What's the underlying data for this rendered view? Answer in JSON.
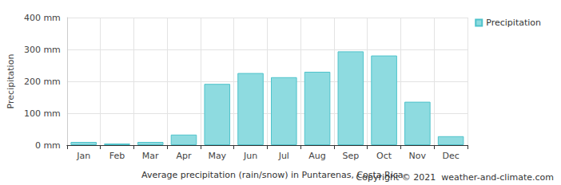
{
  "chart_data": {
    "type": "bar",
    "title": "Average precipitation (rain/snow) in Puntarenas, Costa Rica",
    "annotations": [
      "Copyright © 2021  weather-and-climate.com"
    ],
    "y_label": "Precipitation",
    "categories": [
      "Jan",
      "Feb",
      "Mar",
      "Apr",
      "May",
      "Jun",
      "Jul",
      "Aug",
      "Sep",
      "Oct",
      "Nov",
      "Dec"
    ],
    "series": [
      {
        "name": "Precipitation",
        "color": "#8edbe0",
        "values": [
          10,
          5,
          10,
          33,
          192,
          226,
          213,
          230,
          294,
          281,
          136,
          28
        ]
      }
    ],
    "ylim": [
      0,
      400
    ],
    "yticks": [
      {
        "value": 0,
        "label": "0 mm"
      },
      {
        "value": 100,
        "label": "100 mm"
      },
      {
        "value": 200,
        "label": "200 mm"
      },
      {
        "value": 300,
        "label": "300 mm"
      },
      {
        "value": 400,
        "label": "400 mm"
      }
    ],
    "grid": true,
    "legend": "top-right"
  }
}
